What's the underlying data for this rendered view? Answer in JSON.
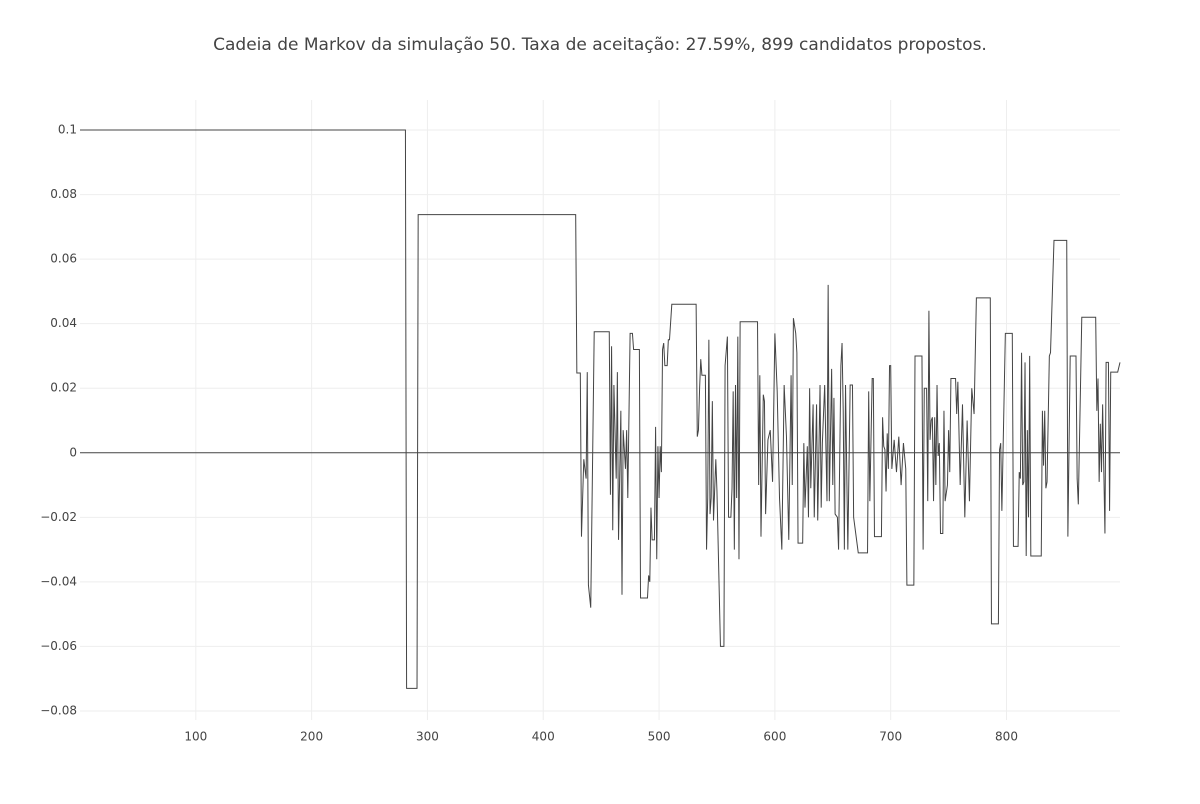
{
  "chart_data": {
    "type": "line",
    "title": "Cadeia de Markov da simulação 50. Taxa de aceitação: 27.59%, 899 candidatos propostos.",
    "x": [
      0,
      281,
      282,
      291,
      292,
      428,
      429,
      432,
      433,
      435,
      437,
      438,
      439,
      441,
      444,
      457,
      458,
      459,
      460,
      461,
      463,
      464,
      465,
      467,
      468,
      469,
      471,
      472,
      473,
      475,
      477,
      478,
      483,
      484,
      490,
      491,
      492,
      493,
      494,
      496,
      497,
      498,
      499,
      500,
      501,
      502,
      503,
      504,
      505,
      507,
      508,
      509,
      511,
      532,
      533,
      534,
      535,
      536,
      537,
      540,
      541,
      542,
      543,
      544,
      545,
      546,
      547,
      549,
      550,
      553,
      556,
      557,
      559,
      560,
      562,
      563,
      564,
      565,
      566,
      567,
      568,
      569,
      570,
      585,
      586,
      587,
      588,
      590,
      591,
      592,
      594,
      596,
      598,
      600,
      602,
      604,
      606,
      608,
      610,
      612,
      614,
      615,
      616,
      618,
      619,
      620,
      624,
      625,
      626,
      628,
      629,
      630,
      631,
      633,
      634,
      636,
      637,
      639,
      640,
      641,
      643,
      645,
      646,
      647,
      649,
      650,
      651,
      652,
      654,
      655,
      657,
      658,
      659,
      660,
      661,
      663,
      665,
      667,
      668,
      672,
      680,
      681,
      682,
      684,
      685,
      686,
      692,
      693,
      694,
      695,
      696,
      697,
      698,
      699,
      700,
      701,
      703,
      705,
      707,
      709,
      711,
      713,
      714,
      720,
      721,
      727,
      728,
      729,
      731,
      732,
      733,
      734,
      735,
      736,
      737,
      738,
      739,
      740,
      741,
      742,
      743,
      745,
      746,
      747,
      749,
      750,
      751,
      752,
      756,
      757,
      758,
      760,
      762,
      764,
      766,
      768,
      770,
      772,
      774,
      786,
      787,
      793,
      794,
      795,
      796,
      799,
      805,
      806,
      810,
      811,
      812,
      813,
      814,
      815,
      816,
      817,
      818,
      819,
      820,
      821,
      825,
      830,
      831,
      832,
      833,
      834,
      835,
      837,
      838,
      841,
      852,
      853,
      855,
      860,
      861,
      862,
      865,
      877,
      878,
      879,
      880,
      881,
      882,
      883,
      885,
      886,
      888,
      889,
      890,
      896,
      898
    ],
    "series": [
      {
        "color": "#444444",
        "values": [
          0.1,
          0.1,
          -0.073,
          -0.073,
          0.0738,
          0.0738,
          0.0247,
          0.0247,
          -0.026,
          -0.002,
          -0.008,
          0.025,
          -0.041,
          -0.048,
          0.0375,
          0.0375,
          -0.013,
          0.033,
          -0.024,
          0.021,
          -0.008,
          0.025,
          -0.027,
          0.013,
          -0.044,
          0.007,
          -0.005,
          0.007,
          -0.014,
          0.037,
          0.037,
          0.032,
          0.032,
          -0.045,
          -0.045,
          -0.038,
          -0.04,
          -0.017,
          -0.027,
          -0.027,
          0.008,
          -0.033,
          0.002,
          -0.014,
          0.002,
          -0.006,
          0.032,
          0.034,
          0.027,
          0.027,
          0.035,
          0.035,
          0.046,
          0.046,
          0.005,
          0.007,
          0.02,
          0.029,
          0.024,
          0.024,
          -0.03,
          -0.014,
          0.035,
          -0.019,
          -0.014,
          0.016,
          -0.021,
          -0.002,
          -0.012,
          -0.06,
          -0.06,
          0.027,
          0.036,
          -0.02,
          -0.02,
          -0.011,
          0.019,
          -0.03,
          0.021,
          -0.014,
          0.036,
          -0.033,
          0.0406,
          0.0406,
          -0.01,
          0.024,
          -0.026,
          0.018,
          0.016,
          -0.019,
          0.004,
          0.007,
          -0.009,
          0.037,
          0.019,
          -0.014,
          -0.03,
          0.021,
          0.005,
          -0.027,
          0.024,
          -0.01,
          0.0417,
          0.037,
          0.031,
          -0.028,
          -0.028,
          0.003,
          -0.017,
          0.002,
          -0.02,
          0.02,
          -0.011,
          0.015,
          -0.02,
          0.015,
          -0.021,
          0.021,
          -0.017,
          0.003,
          0.021,
          -0.015,
          0.052,
          -0.015,
          0.026,
          -0.01,
          0.017,
          -0.019,
          -0.02,
          -0.03,
          0.027,
          0.034,
          0.013,
          -0.03,
          0.021,
          -0.03,
          0.021,
          0.021,
          -0.02,
          -0.031,
          -0.031,
          0.019,
          -0.015,
          0.023,
          0.023,
          -0.026,
          -0.026,
          0.011,
          0.002,
          0.001,
          -0.012,
          0.006,
          -0.005,
          0.027,
          0.027,
          -0.005,
          0.004,
          -0.006,
          0.005,
          -0.01,
          0.003,
          -0.005,
          -0.041,
          -0.041,
          0.03,
          0.03,
          -0.03,
          0.02,
          0.02,
          -0.015,
          0.044,
          0.004,
          0.01,
          0.011,
          -0.015,
          0.011,
          -0.01,
          0.021,
          -0.001,
          0.003,
          -0.025,
          -0.025,
          0.013,
          -0.015,
          -0.01,
          0.007,
          -0.006,
          0.023,
          0.023,
          0.012,
          0.022,
          -0.01,
          0.015,
          -0.02,
          0.01,
          -0.015,
          0.02,
          0.012,
          0.048,
          0.048,
          -0.053,
          -0.053,
          0.001,
          0.003,
          -0.018,
          0.037,
          0.037,
          -0.029,
          -0.029,
          -0.006,
          -0.008,
          0.031,
          -0.01,
          -0.009,
          0.028,
          -0.032,
          0.007,
          -0.02,
          0.03,
          -0.032,
          -0.032,
          -0.032,
          0.013,
          -0.004,
          0.013,
          -0.011,
          -0.009,
          0.03,
          0.031,
          0.0658,
          0.0658,
          -0.026,
          0.03,
          0.03,
          -0.008,
          -0.016,
          0.042,
          0.042,
          0.013,
          0.023,
          -0.009,
          0.009,
          -0.006,
          0.015,
          -0.025,
          0.028,
          0.028,
          -0.018,
          0.025,
          0.025,
          0.028
        ]
      }
    ],
    "xlim": [
      0,
      898
    ],
    "xticks": [
      100,
      200,
      300,
      400,
      500,
      600,
      700,
      800
    ],
    "ylim": [
      -0.0828,
      0.1093
    ],
    "yticks": [
      {
        "value": -0.08,
        "label": "−0.08"
      },
      {
        "value": -0.06,
        "label": "−0.06"
      },
      {
        "value": -0.04,
        "label": "−0.04"
      },
      {
        "value": -0.02,
        "label": "−0.02"
      },
      0,
      0.02,
      0.04,
      0.06,
      0.08,
      0.1
    ],
    "grid": true,
    "zeroline": true
  }
}
